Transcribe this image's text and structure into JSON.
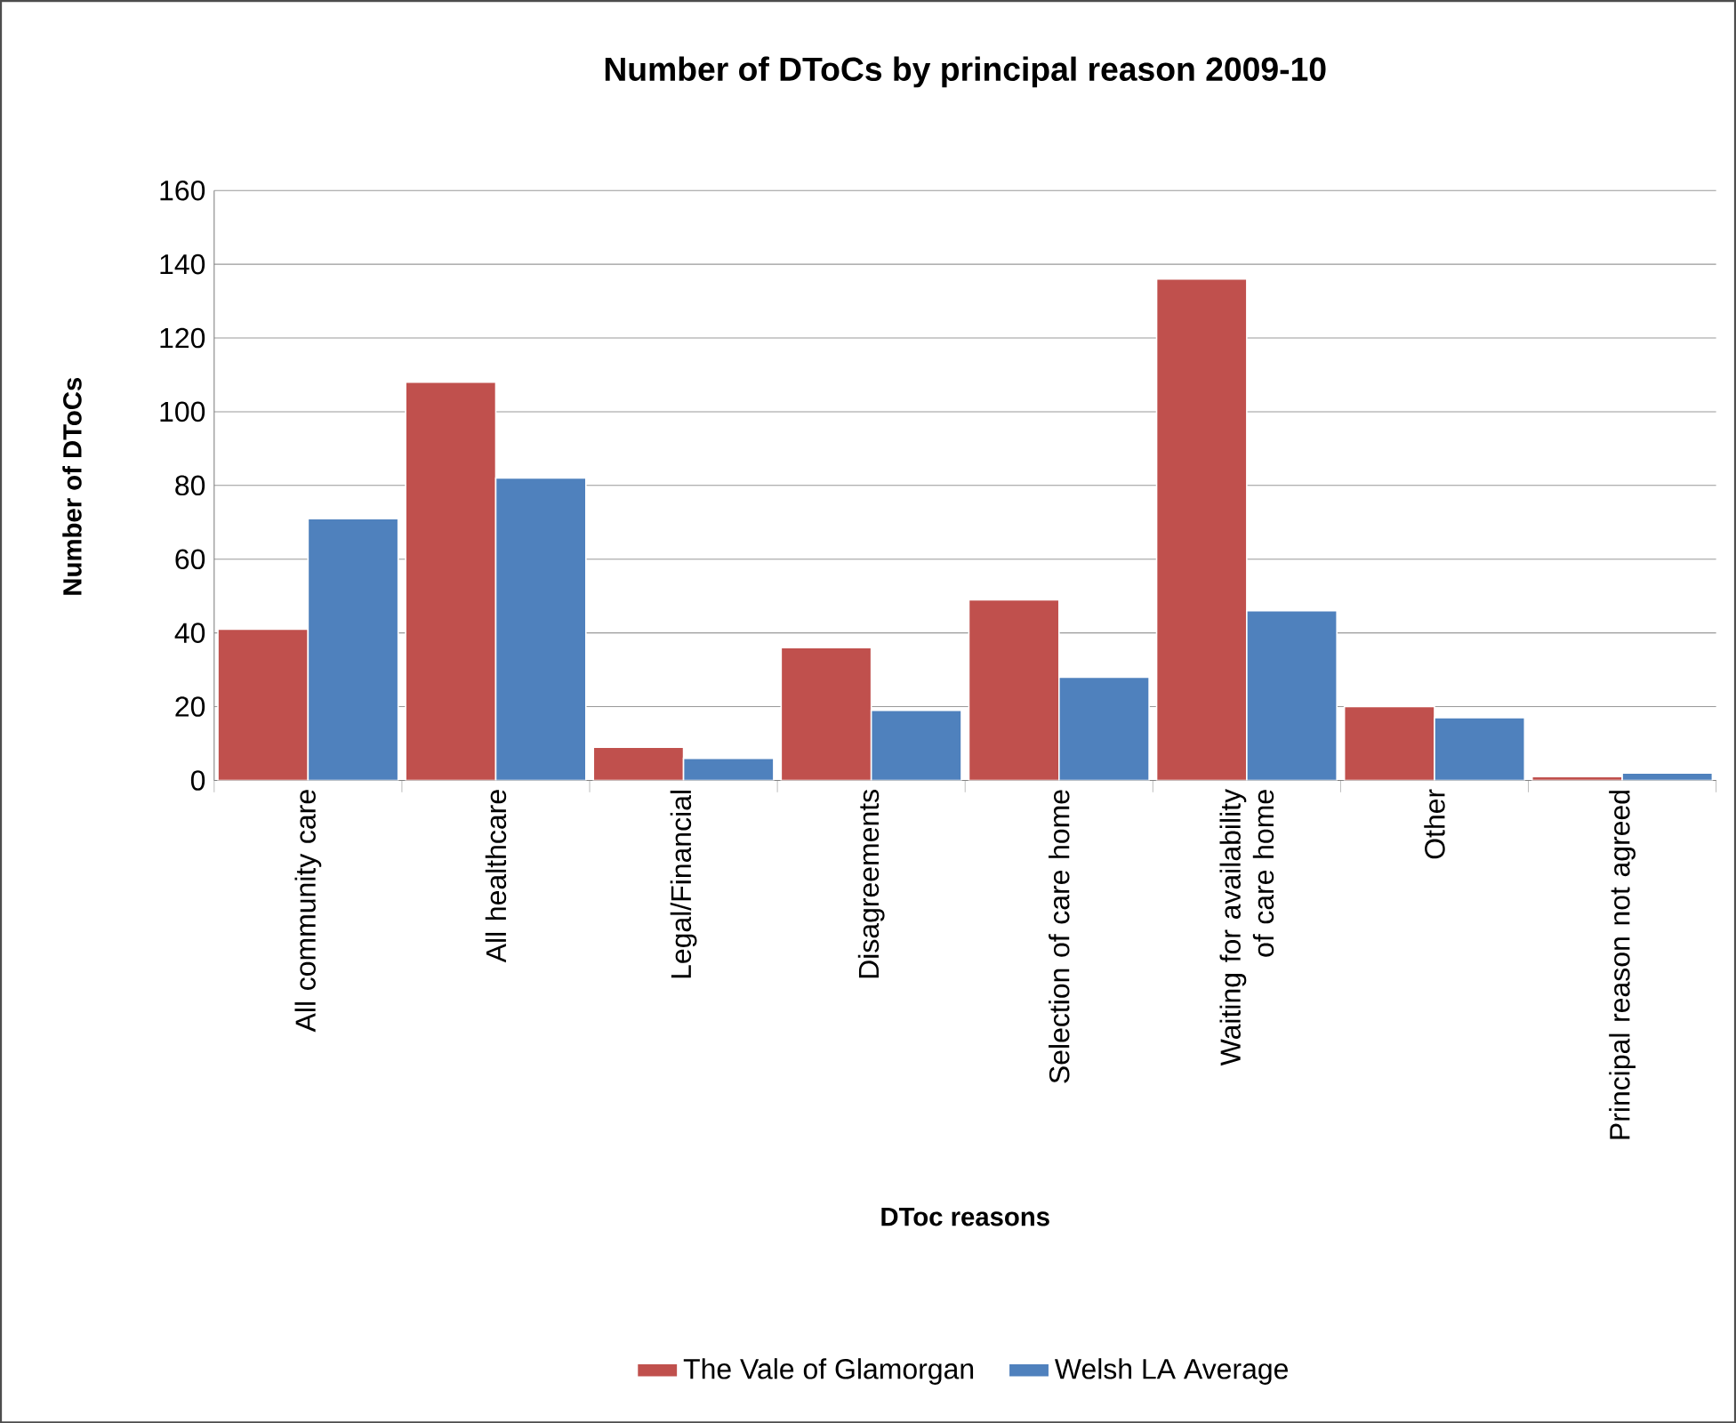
{
  "chart_data": {
    "type": "bar",
    "title": "Number of DToCs by principal reason 2009-10",
    "xlabel": "DToc reasons",
    "ylabel": "Number of DToCs",
    "categories": [
      "All community care",
      "All healthcare",
      "Legal/Financial",
      "Disagreements",
      "Selection of care home",
      "Waiting for availability of care home",
      "Other",
      "Principal reason not agreed"
    ],
    "series": [
      {
        "name": "The Vale of Glamorgan",
        "color": "#c0504d",
        "values": [
          41,
          108,
          9,
          36,
          49,
          136,
          20,
          1
        ]
      },
      {
        "name": "Welsh LA Average",
        "color": "#4f81bd",
        "values": [
          71,
          82,
          6,
          19,
          28,
          46,
          17,
          2
        ]
      }
    ],
    "ylim": [
      0,
      160
    ],
    "yticks": [
      0,
      20,
      40,
      60,
      80,
      100,
      120,
      140,
      160
    ],
    "grid": "y",
    "legend": "bottom"
  }
}
